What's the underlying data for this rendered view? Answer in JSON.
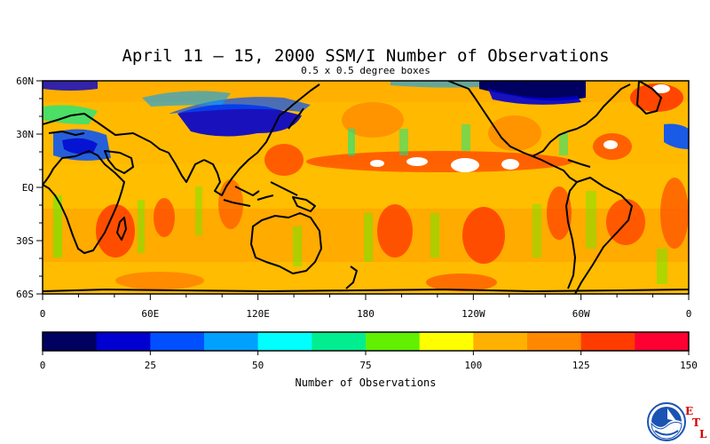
{
  "title": "April 11 – 15, 2000 SSM/I Number of Observations",
  "subtitle": "0.5 x 0.5 degree boxes",
  "map": {
    "lat_labels": [
      "60N",
      "30N",
      "EQ",
      "30S",
      "60S"
    ],
    "lon_labels": [
      "0",
      "60E",
      "120E",
      "180",
      "120W",
      "60W",
      "0"
    ],
    "lat_range": [
      -60,
      60
    ],
    "lon_range": [
      0,
      360
    ],
    "coastline_color": "#000000"
  },
  "colorbar": {
    "label": "Number of Observations",
    "ticks": [
      "0",
      "25",
      "50",
      "75",
      "100",
      "125",
      "150"
    ],
    "range": [
      0,
      150
    ],
    "colors": [
      "#000060",
      "#0000d0",
      "#0050ff",
      "#00a0ff",
      "#00ffff",
      "#00ee90",
      "#60f000",
      "#ffff00",
      "#ffb000",
      "#ff8800",
      "#ff3c00",
      "#ff0033"
    ]
  },
  "logo": {
    "name": "NOAA",
    "letters": [
      "E",
      "T",
      "L"
    ],
    "colors": {
      "blue": "#1a53b3",
      "red": "#d40000"
    }
  }
}
